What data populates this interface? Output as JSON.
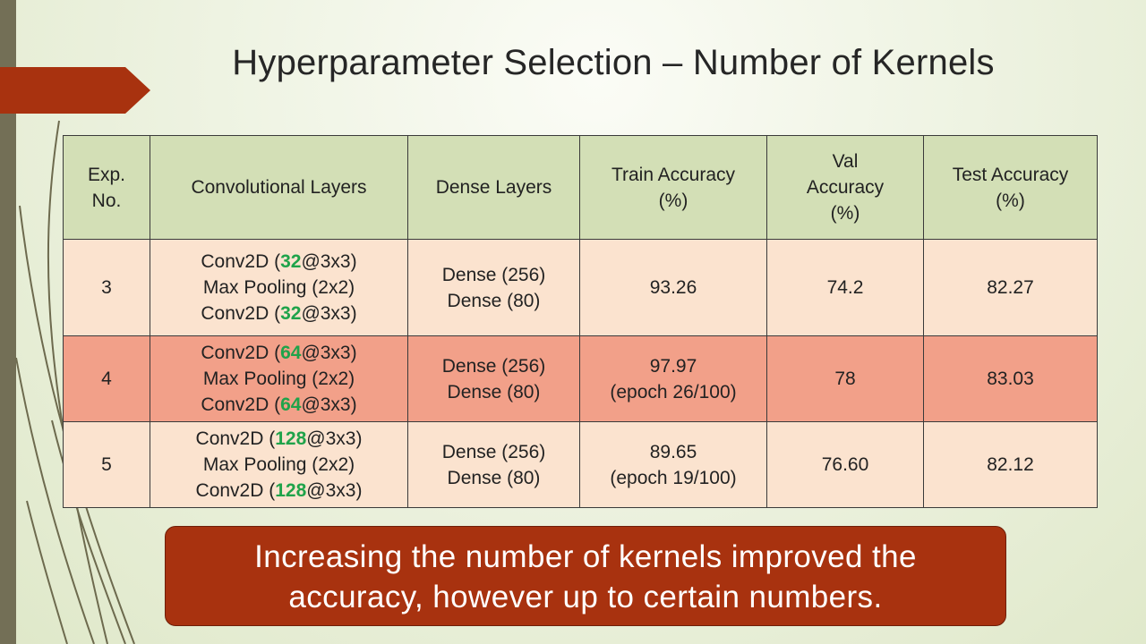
{
  "slide": {
    "title": "Hyperparameter Selection – Number of Kernels",
    "callout": [
      "Increasing the number of kernels improved the",
      "accuracy, however up to certain numbers."
    ]
  },
  "colors": {
    "accent": "#a8320f",
    "header_row": "#d3dfb6",
    "row_light": "#fbe3cf",
    "row_highlight": "#f2a089",
    "kernel_highlight": "#1fa34a"
  },
  "table": {
    "headers": [
      [
        "Exp.",
        "No."
      ],
      [
        "Convolutional Layers"
      ],
      [
        "Dense Layers"
      ],
      [
        "Train Accuracy",
        "(%)"
      ],
      [
        "Val",
        "Accuracy",
        "(%)"
      ],
      [
        "Test Accuracy",
        "(%)"
      ]
    ],
    "rows": [
      {
        "exp_no": "3",
        "conv": [
          {
            "pre": "Conv2D (",
            "hl": "32",
            "post": "@3x3)"
          },
          {
            "pre": "Max Pooling (2x2)",
            "hl": "",
            "post": ""
          },
          {
            "pre": "Conv2D (",
            "hl": "32",
            "post": "@3x3)"
          }
        ],
        "dense": [
          "Dense (256)",
          "Dense (80)"
        ],
        "train": [
          "93.26"
        ],
        "val": "74.2",
        "test": "82.27"
      },
      {
        "exp_no": "4",
        "conv": [
          {
            "pre": "Conv2D (",
            "hl": "64",
            "post": "@3x3)"
          },
          {
            "pre": "Max Pooling (2x2)",
            "hl": "",
            "post": ""
          },
          {
            "pre": "Conv2D (",
            "hl": "64",
            "post": "@3x3)"
          }
        ],
        "dense": [
          "Dense (256)",
          "Dense (80)"
        ],
        "train": [
          "97.97",
          "(epoch 26/100)"
        ],
        "val": "78",
        "test": "83.03"
      },
      {
        "exp_no": "5",
        "conv": [
          {
            "pre": "Conv2D (",
            "hl": "128",
            "post": "@3x3)"
          },
          {
            "pre": "Max Pooling (2x2)",
            "hl": "",
            "post": ""
          },
          {
            "pre": "Conv2D (",
            "hl": "128",
            "post": "@3x3)"
          }
        ],
        "dense": [
          "Dense (256)",
          "Dense (80)"
        ],
        "train": [
          "89.65",
          "(epoch 19/100)"
        ],
        "val": "76.60",
        "test": "82.12"
      }
    ]
  }
}
